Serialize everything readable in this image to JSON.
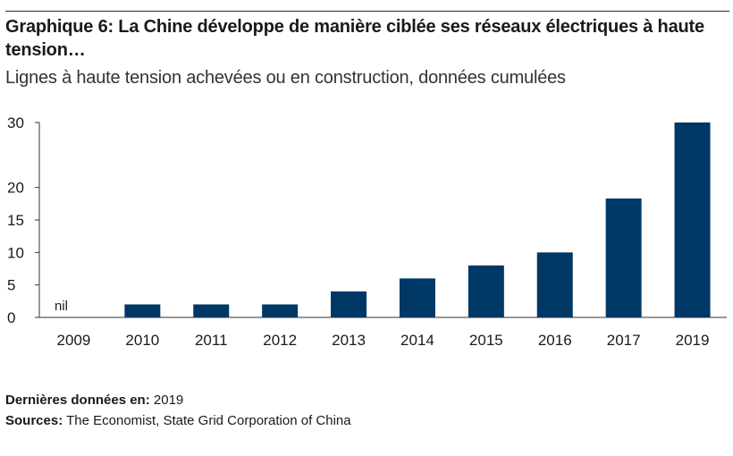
{
  "header": {
    "title": "Graphique 6: La Chine développe de manière ciblée ses réseaux électriques à haute tension…",
    "subtitle": "Lignes à haute tension achevées ou en construction, données cumulées"
  },
  "chart_data": {
    "type": "bar",
    "categories": [
      "2009",
      "2010",
      "2011",
      "2012",
      "2013",
      "2014",
      "2015",
      "2016",
      "2017",
      "2019"
    ],
    "values": [
      0,
      2,
      2,
      2,
      4,
      6,
      8,
      10,
      18.3,
      30
    ],
    "bar_annotations": [
      "nil",
      "",
      "",
      "",
      "",
      "",
      "",
      "",
      "",
      ""
    ],
    "y_ticks": [
      "0",
      "5",
      "10",
      "15",
      "20",
      "30"
    ],
    "y_tick_values": [
      0,
      5,
      10,
      15,
      20,
      30
    ],
    "ylim": [
      0,
      30
    ],
    "title": "Graphique 6: La Chine développe de manière ciblée ses réseaux électriques à haute tension…",
    "subtitle": "Lignes à haute tension achevées ou en construction, données cumulées",
    "xlabel": "",
    "ylabel": "",
    "grid": false,
    "bar_color": "#003865"
  },
  "footer": {
    "latest_label": "Dernières données en:",
    "latest_value": "2019",
    "sources_label": "Sources:",
    "sources_value": "The Economist, State Grid Corporation of China"
  }
}
